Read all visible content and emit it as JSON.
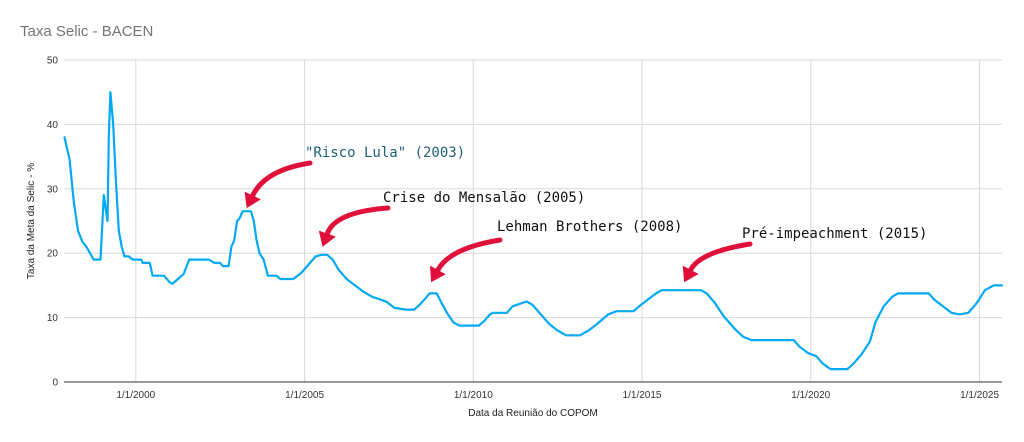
{
  "chart_data": {
    "type": "line",
    "title": "Taxa Selic - BACEN",
    "xlabel": "Data da Reunião do COPOM",
    "ylabel": "Taxa da Meta da Selic - %",
    "ylim": [
      0,
      50
    ],
    "xlim": [
      "1997-11-15",
      "2025-09-01"
    ],
    "yticks": [
      0,
      10,
      20,
      30,
      40,
      50
    ],
    "xticks": [
      {
        "date": "2000-01-01",
        "label": "1/1/2000"
      },
      {
        "date": "2005-01-01",
        "label": "1/1/2005"
      },
      {
        "date": "2010-01-01",
        "label": "1/1/2010"
      },
      {
        "date": "2015-01-01",
        "label": "1/1/2015"
      },
      {
        "date": "2020-01-01",
        "label": "1/1/2020"
      },
      {
        "date": "2025-01-01",
        "label": "1/1/2025"
      }
    ],
    "grid": true,
    "series": [
      {
        "name": "",
        "color": "#03a9f4",
        "points": [
          [
            "1997-11-20",
            38.0
          ],
          [
            "1998-01-15",
            34.5
          ],
          [
            "1998-03-01",
            28.0
          ],
          [
            "1998-04-15",
            23.5
          ],
          [
            "1998-06-01",
            21.8
          ],
          [
            "1998-07-15",
            21.0
          ],
          [
            "1998-09-01",
            19.8
          ],
          [
            "1998-10-01",
            19.0
          ],
          [
            "1998-11-15",
            19.0
          ],
          [
            "1998-12-15",
            19.0
          ],
          [
            "1999-01-20",
            29.0
          ],
          [
            "1999-03-01",
            25.0
          ],
          [
            "1999-03-15",
            38.0
          ],
          [
            "1999-04-01",
            45.0
          ],
          [
            "1999-05-01",
            40.0
          ],
          [
            "1999-06-01",
            31.0
          ],
          [
            "1999-07-01",
            23.5
          ],
          [
            "1999-08-01",
            21.0
          ],
          [
            "1999-09-01",
            19.5
          ],
          [
            "1999-10-15",
            19.5
          ],
          [
            "1999-12-01",
            19.0
          ],
          [
            "2000-03-01",
            19.0
          ],
          [
            "2000-03-15",
            18.5
          ],
          [
            "2000-06-01",
            18.5
          ],
          [
            "2000-07-01",
            16.5
          ],
          [
            "2000-10-01",
            16.5
          ],
          [
            "2000-11-01",
            16.5
          ],
          [
            "2001-01-01",
            15.5
          ],
          [
            "2001-02-01",
            15.25
          ],
          [
            "2001-04-01",
            16.0
          ],
          [
            "2001-06-01",
            16.75
          ],
          [
            "2001-08-01",
            19.0
          ],
          [
            "2001-12-01",
            19.0
          ],
          [
            "2002-03-01",
            19.0
          ],
          [
            "2002-05-01",
            18.5
          ],
          [
            "2002-07-01",
            18.5
          ],
          [
            "2002-08-01",
            18.0
          ],
          [
            "2002-10-01",
            18.0
          ],
          [
            "2002-11-01",
            21.0
          ],
          [
            "2002-12-01",
            22.0
          ],
          [
            "2003-01-01",
            25.0
          ],
          [
            "2003-02-01",
            25.5
          ],
          [
            "2003-03-01",
            26.5
          ],
          [
            "2003-06-01",
            26.5
          ],
          [
            "2003-07-01",
            25.0
          ],
          [
            "2003-08-01",
            22.0
          ],
          [
            "2003-09-01",
            20.0
          ],
          [
            "2003-10-15",
            19.0
          ],
          [
            "2003-12-01",
            16.5
          ],
          [
            "2004-03-01",
            16.5
          ],
          [
            "2004-04-15",
            16.0
          ],
          [
            "2004-09-01",
            16.0
          ],
          [
            "2004-12-01",
            17.0
          ],
          [
            "2005-03-01",
            18.5
          ],
          [
            "2005-05-01",
            19.5
          ],
          [
            "2005-07-01",
            19.75
          ],
          [
            "2005-09-01",
            19.75
          ],
          [
            "2005-11-01",
            19.0
          ],
          [
            "2006-01-01",
            17.5
          ],
          [
            "2006-04-01",
            16.0
          ],
          [
            "2006-07-01",
            15.0
          ],
          [
            "2006-10-01",
            14.0
          ],
          [
            "2007-01-01",
            13.25
          ],
          [
            "2007-06-01",
            12.5
          ],
          [
            "2007-09-01",
            11.5
          ],
          [
            "2008-01-01",
            11.25
          ],
          [
            "2008-04-01",
            11.25
          ],
          [
            "2008-06-01",
            12.0
          ],
          [
            "2008-08-01",
            13.0
          ],
          [
            "2008-09-15",
            13.75
          ],
          [
            "2008-12-01",
            13.75
          ],
          [
            "2009-02-01",
            12.0
          ],
          [
            "2009-04-01",
            10.5
          ],
          [
            "2009-06-01",
            9.25
          ],
          [
            "2009-08-01",
            8.75
          ],
          [
            "2010-03-01",
            8.75
          ],
          [
            "2010-05-01",
            9.5
          ],
          [
            "2010-07-01",
            10.5
          ],
          [
            "2010-08-01",
            10.75
          ],
          [
            "2011-01-01",
            10.75
          ],
          [
            "2011-03-01",
            11.75
          ],
          [
            "2011-08-01",
            12.5
          ],
          [
            "2011-10-01",
            12.0
          ],
          [
            "2012-01-01",
            10.5
          ],
          [
            "2012-04-01",
            9.0
          ],
          [
            "2012-07-01",
            8.0
          ],
          [
            "2012-10-01",
            7.25
          ],
          [
            "2013-03-01",
            7.25
          ],
          [
            "2013-06-01",
            8.0
          ],
          [
            "2013-09-01",
            9.0
          ],
          [
            "2014-01-01",
            10.5
          ],
          [
            "2014-04-01",
            11.0
          ],
          [
            "2014-10-01",
            11.0
          ],
          [
            "2014-12-01",
            11.75
          ],
          [
            "2015-03-01",
            12.75
          ],
          [
            "2015-06-01",
            13.75
          ],
          [
            "2015-08-01",
            14.25
          ],
          [
            "2016-10-01",
            14.25
          ],
          [
            "2016-12-01",
            13.75
          ],
          [
            "2017-03-01",
            12.25
          ],
          [
            "2017-06-01",
            10.25
          ],
          [
            "2017-10-01",
            8.25
          ],
          [
            "2018-01-01",
            7.0
          ],
          [
            "2018-04-01",
            6.5
          ],
          [
            "2019-07-01",
            6.5
          ],
          [
            "2019-09-01",
            5.5
          ],
          [
            "2019-12-01",
            4.5
          ],
          [
            "2020-03-01",
            4.0
          ],
          [
            "2020-05-01",
            3.0
          ],
          [
            "2020-08-01",
            2.0
          ],
          [
            "2021-02-01",
            2.0
          ],
          [
            "2021-04-01",
            2.75
          ],
          [
            "2021-07-01",
            4.25
          ],
          [
            "2021-10-01",
            6.25
          ],
          [
            "2021-12-01",
            9.25
          ],
          [
            "2022-03-01",
            11.75
          ],
          [
            "2022-06-01",
            13.25
          ],
          [
            "2022-08-01",
            13.75
          ],
          [
            "2023-07-01",
            13.75
          ],
          [
            "2023-09-01",
            12.75
          ],
          [
            "2023-12-01",
            11.75
          ],
          [
            "2024-03-01",
            10.75
          ],
          [
            "2024-06-01",
            10.5
          ],
          [
            "2024-09-01",
            10.75
          ],
          [
            "2024-12-01",
            12.25
          ],
          [
            "2025-03-01",
            14.25
          ],
          [
            "2025-06-01",
            15.0
          ],
          [
            "2025-09-01",
            15.0
          ]
        ]
      }
    ],
    "annotations": [
      {
        "text": "\"Risco Lula\" (2003)",
        "color": "#1f5f7a",
        "target": [
          "2003-04-15",
          27.0
        ]
      },
      {
        "text": "Crise do Mensalão (2005)",
        "color": "#111111",
        "target": [
          "2005-07-15",
          21.0
        ]
      },
      {
        "text": "Lehman Brothers (2008)",
        "color": "#111111",
        "target": [
          "2008-10-01",
          15.5
        ]
      },
      {
        "text": "Pré-impeachment (2015)",
        "color": "#111111",
        "target": [
          "2016-04-01",
          15.5
        ]
      }
    ]
  }
}
